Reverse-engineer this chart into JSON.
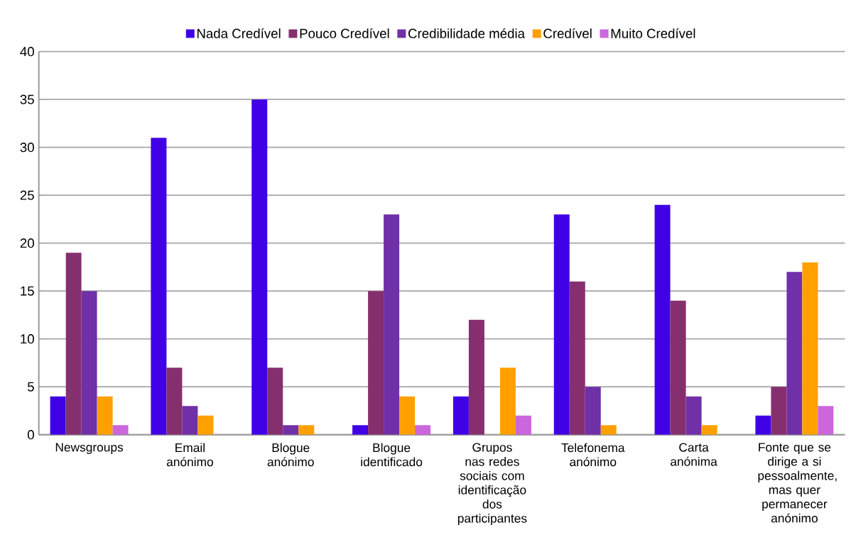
{
  "chart_data": {
    "type": "bar",
    "categories": [
      "Newsgroups",
      "Email anónimo",
      "Blogue anónimo",
      "Blogue identificado",
      "Grupos nas redes sociais com identificação dos participantes",
      "Telefonema anónimo",
      "Carta anónima",
      "Fonte que se dirige a si pessoalmente, mas quer permanecer anónimo"
    ],
    "series": [
      {
        "name": "Nada Credível",
        "color": "#4000e6",
        "values": [
          4,
          31,
          35,
          1,
          4,
          23,
          24,
          2
        ]
      },
      {
        "name": "Pouco Credível",
        "color": "#862f6e",
        "values": [
          19,
          7,
          7,
          15,
          12,
          16,
          14,
          5
        ]
      },
      {
        "name": "Credibilidade média",
        "color": "#7030a8",
        "values": [
          15,
          3,
          1,
          23,
          0,
          5,
          4,
          17
        ]
      },
      {
        "name": "Credível",
        "color": "#ffa000",
        "values": [
          4,
          2,
          1,
          4,
          7,
          1,
          1,
          18
        ]
      },
      {
        "name": "Muito Credível",
        "color": "#cc66dd",
        "values": [
          1,
          0,
          0,
          1,
          2,
          0,
          0,
          3
        ]
      }
    ],
    "ylim": [
      0,
      40
    ],
    "yticks": [
      0,
      5,
      10,
      15,
      20,
      25,
      30,
      35,
      40
    ],
    "grid": "y",
    "legend": "top"
  }
}
